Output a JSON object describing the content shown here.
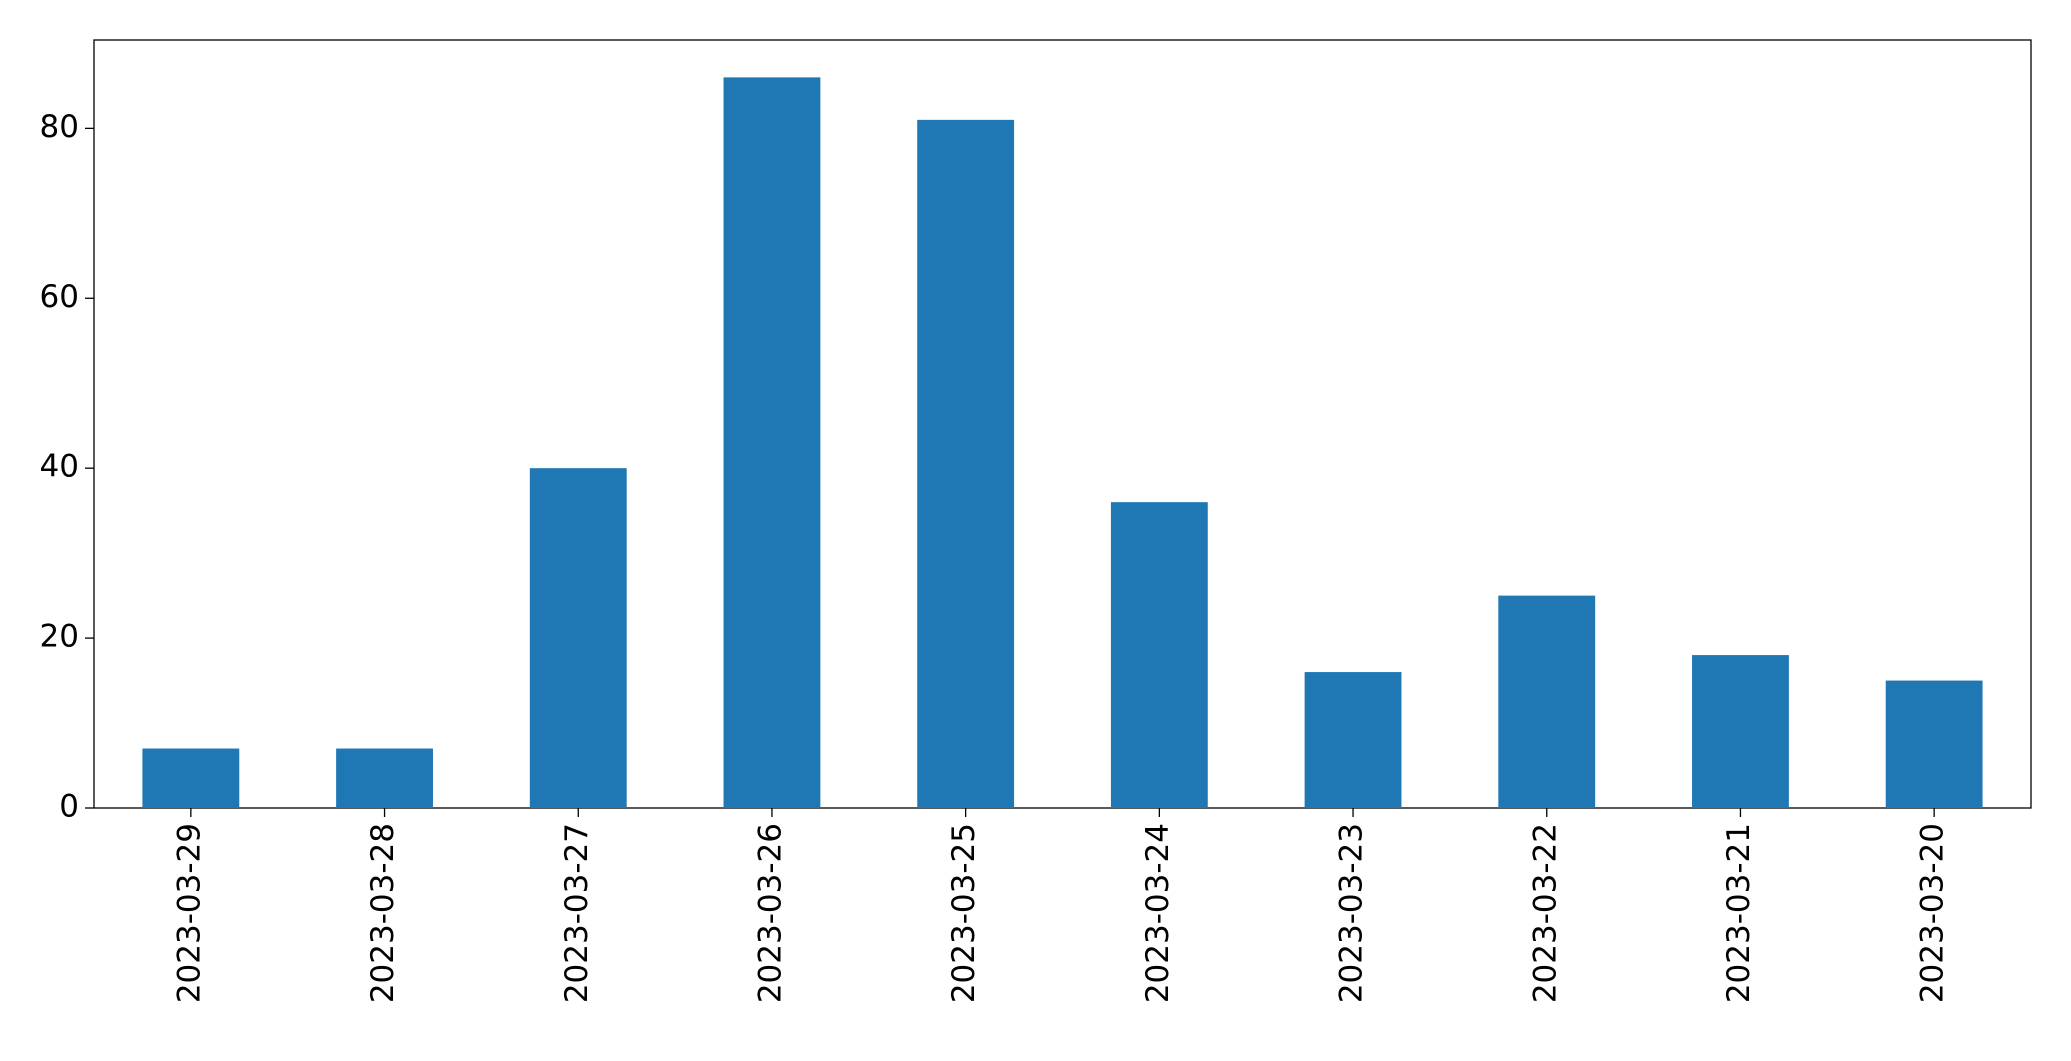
{
  "chart_data": {
    "type": "bar",
    "categories": [
      "2023-03-29",
      "2023-03-28",
      "2023-03-27",
      "2023-03-26",
      "2023-03-25",
      "2023-03-24",
      "2023-03-23",
      "2023-03-22",
      "2023-03-21",
      "2023-03-20"
    ],
    "values": [
      7,
      7,
      40,
      86,
      81,
      36,
      16,
      25,
      18,
      15
    ],
    "color": "#1f77b4",
    "ylim": [
      0,
      90.4
    ],
    "yticks": [
      0,
      20,
      40,
      60,
      80
    ],
    "grid": false
  }
}
